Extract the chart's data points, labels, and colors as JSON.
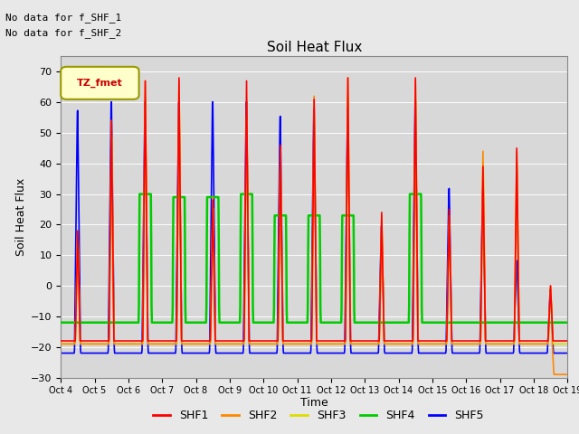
{
  "title": "Soil Heat Flux",
  "ylabel": "Soil Heat Flux",
  "xlabel": "Time",
  "note1": "No data for f_SHF_1",
  "note2": "No data for f_SHF_2",
  "legend_label": "TZ_fmet",
  "ylim": [
    -30,
    75
  ],
  "yticks": [
    -30,
    -20,
    -10,
    0,
    10,
    20,
    30,
    40,
    50,
    60,
    70
  ],
  "xtick_labels": [
    "Oct 4",
    "Oct 5",
    "Oct 6",
    "Oct 7",
    "Oct 8",
    "Oct 9",
    "Oct 10",
    "Oct 11",
    "Oct 12",
    "Oct 13",
    "Oct 14",
    "Oct 15",
    "Oct 16",
    "Oct 17",
    "Oct 18",
    "Oct 19"
  ],
  "series_colors": {
    "SHF1": "#ff0000",
    "SHF2": "#ff8800",
    "SHF3": "#dddd00",
    "SHF4": "#00cc00",
    "SHF5": "#0000ff"
  },
  "bg_color": "#e8e8e8",
  "plot_bg_color": "#d8d8d8",
  "n_days": 15,
  "points_per_day": 96,
  "shf1_peaks": [
    18,
    54,
    67,
    68,
    28,
    67,
    46,
    61,
    68,
    24,
    68,
    25,
    39,
    45,
    0
  ],
  "shf2_peaks": [
    18,
    54,
    67,
    67,
    29,
    60,
    45,
    62,
    68,
    23,
    67,
    23,
    44,
    44,
    0
  ],
  "shf3_peaks": [
    18,
    54,
    67,
    67,
    29,
    60,
    45,
    62,
    68,
    23,
    67,
    23,
    44,
    44,
    0
  ],
  "shf4_peaks": [
    -12,
    -12,
    30,
    29,
    29,
    30,
    23,
    23,
    23,
    -12,
    30,
    -12,
    -12,
    -12,
    -12
  ],
  "shf5_peaks": [
    62,
    65,
    65,
    65,
    65,
    65,
    60,
    63,
    63,
    22,
    65,
    35,
    35,
    10,
    0
  ],
  "shf1_night": -18,
  "shf2_night": -19,
  "shf3_night": -19,
  "shf5_night": -22,
  "shf4_night": -12
}
